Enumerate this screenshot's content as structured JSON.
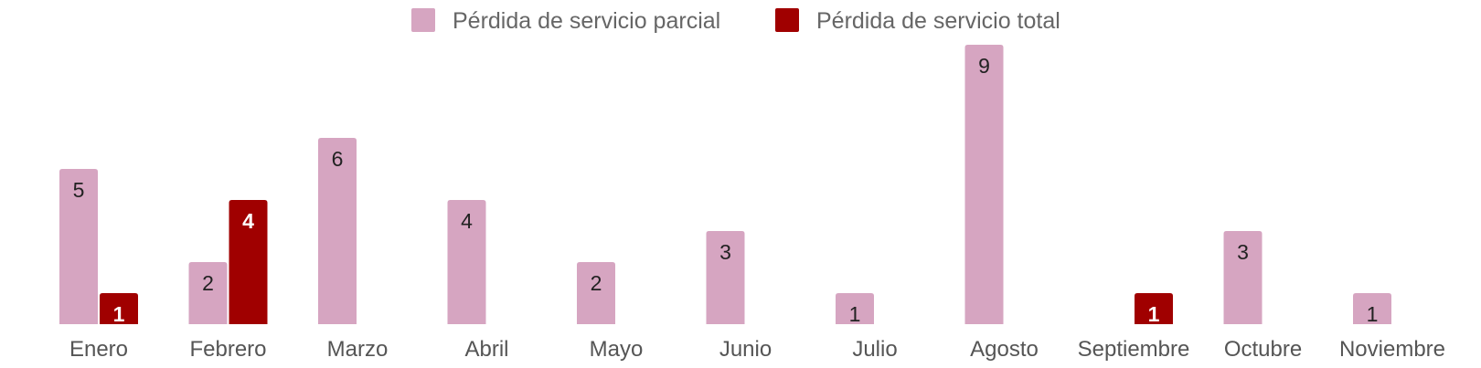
{
  "chart_data": {
    "type": "bar",
    "categories": [
      "Enero",
      "Febrero",
      "Marzo",
      "Abril",
      "Mayo",
      "Junio",
      "Julio",
      "Agosto",
      "Septiembre",
      "Octubre",
      "Noviembre"
    ],
    "series": [
      {
        "name": "Pérdida de servicio parcial",
        "color": "#d6a5c1",
        "values": [
          5,
          2,
          6,
          4,
          2,
          3,
          1,
          9,
          0,
          3,
          1
        ]
      },
      {
        "name": "Pérdida de servicio total",
        "color": "#a00000",
        "values": [
          1,
          4,
          0,
          0,
          0,
          0,
          0,
          0,
          1,
          0,
          0
        ]
      }
    ],
    "title": "",
    "xlabel": "",
    "ylabel": "",
    "ylim": [
      0,
      9
    ],
    "grid": false,
    "legend_position": "top-center"
  }
}
